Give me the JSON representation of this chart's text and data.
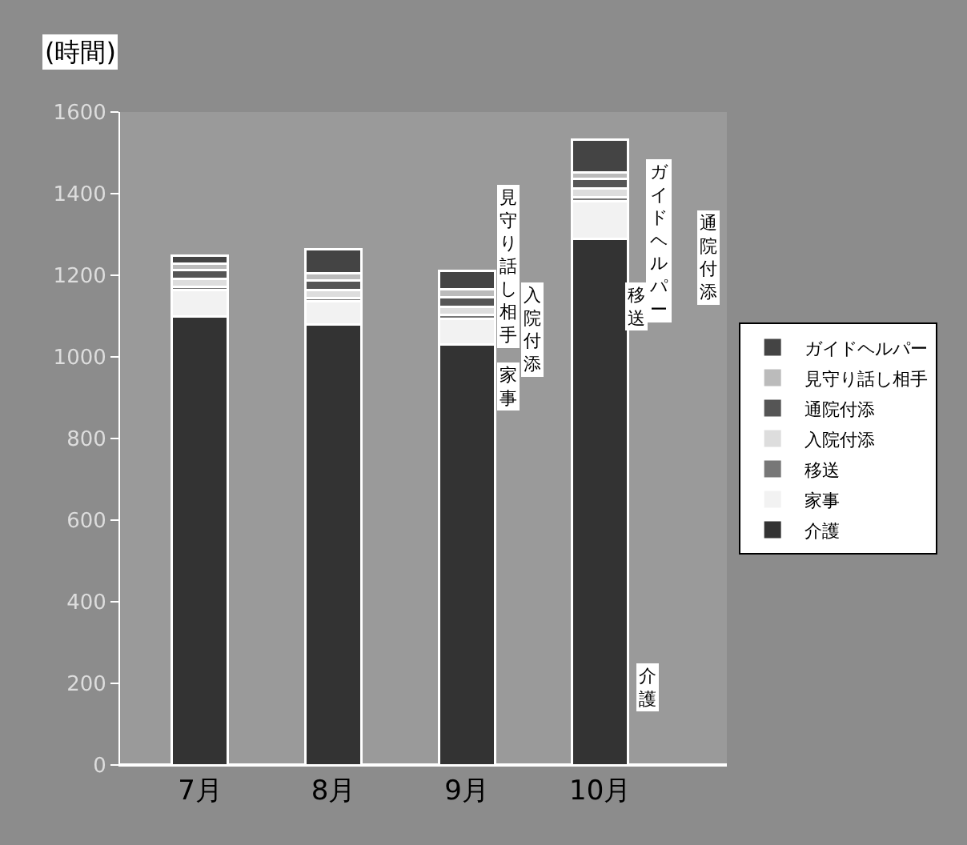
{
  "chart_data": {
    "type": "bar",
    "stacked": true,
    "ylabel": "(時間)",
    "categories": [
      "7月",
      "8月",
      "9月",
      "10月"
    ],
    "series": [
      {
        "name": "介護",
        "color": "#333333",
        "values": [
          1100,
          1080,
          1030,
          1290
        ]
      },
      {
        "name": "家事",
        "color": "#f2f2f2",
        "values": [
          64,
          56,
          64,
          92
        ]
      },
      {
        "name": "移送",
        "color": "#777777",
        "values": [
          8,
          8,
          8,
          10
        ]
      },
      {
        "name": "入院付添",
        "color": "#dddddd",
        "values": [
          20,
          20,
          20,
          20
        ]
      },
      {
        "name": "通院付添",
        "color": "#555555",
        "values": [
          20,
          24,
          24,
          24
        ]
      },
      {
        "name": "見守り話し相手",
        "color": "#bbbbbb",
        "values": [
          16,
          16,
          20,
          16
        ]
      },
      {
        "name": "ガイドヘルパー",
        "color": "#444444",
        "values": [
          20,
          60,
          44,
          80
        ]
      }
    ],
    "ylim": [
      0,
      1600
    ],
    "yticks": [
      0,
      200,
      400,
      600,
      800,
      1000,
      1200,
      1400,
      1600
    ],
    "grid": false,
    "legend": "right",
    "annotations": [
      "見守り話し相手",
      "入院付添",
      "家事",
      "ガイドヘルパー",
      "通院付添",
      "移送",
      "介護"
    ]
  }
}
